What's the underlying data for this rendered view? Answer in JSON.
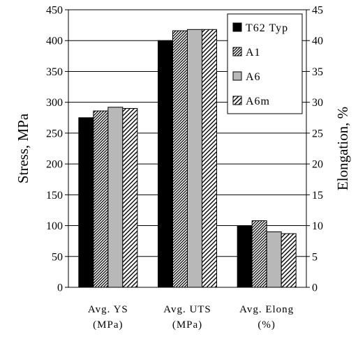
{
  "chart_data": {
    "type": "bar",
    "categories": [
      [
        "Avg. YS",
        "(MPa)"
      ],
      [
        "Avg. UTS",
        "(MPa)"
      ],
      [
        "Avg. Elong",
        "(%)"
      ]
    ],
    "series": [
      {
        "name": "T62 Typ",
        "values": [
          275,
          400,
          10
        ],
        "fill": "solid-black"
      },
      {
        "name": "A1",
        "values": [
          286,
          416,
          10.8
        ],
        "fill": "dense-diagonal-stripes"
      },
      {
        "name": "A6",
        "values": [
          292,
          418,
          9.0
        ],
        "fill": "solid-gray"
      },
      {
        "name": "A6m",
        "values": [
          290,
          418,
          8.7
        ],
        "fill": "light-diagonal-stripes"
      }
    ],
    "category_axis": [
      "primary",
      "primary",
      "secondary"
    ],
    "ylabel": "Stress, MPa",
    "y2label": "Elongation, %",
    "ylim": [
      0,
      450
    ],
    "y2lim": [
      0,
      45
    ],
    "yticks": [
      0,
      50,
      100,
      150,
      200,
      250,
      300,
      350,
      400,
      450
    ],
    "y2ticks": [
      0,
      5,
      10,
      15,
      20,
      25,
      30,
      35,
      40,
      45
    ],
    "grid": "horizontal",
    "legend_position": "top-right"
  }
}
